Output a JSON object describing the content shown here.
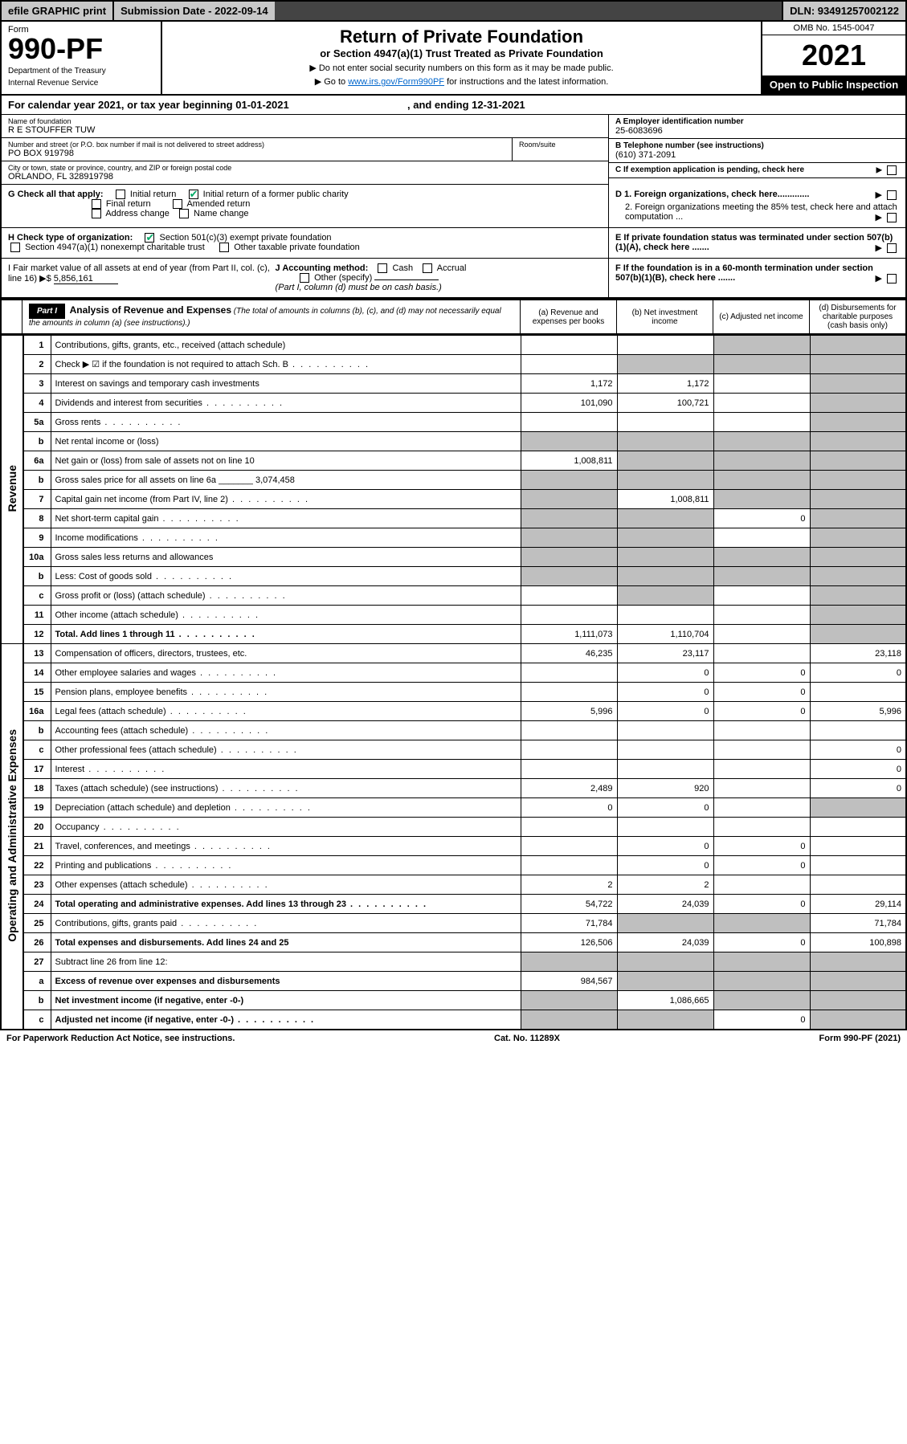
{
  "topbar": {
    "efile": "efile GRAPHIC print",
    "submission_label": "Submission Date - 2022-09-14",
    "dln": "DLN: 93491257002122"
  },
  "header": {
    "form_label": "Form",
    "form_number": "990-PF",
    "dept1": "Department of the Treasury",
    "dept2": "Internal Revenue Service",
    "title": "Return of Private Foundation",
    "subtitle": "or Section 4947(a)(1) Trust Treated as Private Foundation",
    "instr1": "▶ Do not enter social security numbers on this form as it may be made public.",
    "instr2_pre": "▶ Go to ",
    "instr2_link": "www.irs.gov/Form990PF",
    "instr2_post": " for instructions and the latest information.",
    "omb": "OMB No. 1545-0047",
    "year": "2021",
    "open": "Open to Public Inspection"
  },
  "cal": {
    "text_pre": "For calendar year 2021, or tax year beginning ",
    "begin": "01-01-2021",
    "text_mid": " , and ending ",
    "end": "12-31-2021"
  },
  "info": {
    "name_label": "Name of foundation",
    "name": "R E STOUFFER TUW",
    "addr_label": "Number and street (or P.O. box number if mail is not delivered to street address)",
    "addr": "PO BOX 919798",
    "room_label": "Room/suite",
    "city_label": "City or town, state or province, country, and ZIP or foreign postal code",
    "city": "ORLANDO, FL 328919798",
    "a_label": "A Employer identification number",
    "a_val": "25-6083696",
    "b_label": "B Telephone number (see instructions)",
    "b_val": "(610) 371-2091",
    "c_label": "C If exemption application is pending, check here",
    "d1_label": "D 1. Foreign organizations, check here.............",
    "d2_label": "2. Foreign organizations meeting the 85% test, check here and attach computation ...",
    "e_label": "E If private foundation status was terminated under section 507(b)(1)(A), check here .......",
    "f_label": "F If the foundation is in a 60-month termination under section 507(b)(1)(B), check here .......",
    "g_label": "G Check all that apply:",
    "g_opts": [
      "Initial return",
      "Initial return of a former public charity",
      "Final return",
      "Amended return",
      "Address change",
      "Name change"
    ],
    "h_label": "H Check type of organization:",
    "h_opt1": "Section 501(c)(3) exempt private foundation",
    "h_opt2": "Section 4947(a)(1) nonexempt charitable trust",
    "h_opt3": "Other taxable private foundation",
    "i_label": "I Fair market value of all assets at end of year (from Part II, col. (c), line 16) ▶$",
    "i_val": "5,856,161",
    "j_label": "J Accounting method:",
    "j_opts": [
      "Cash",
      "Accrual"
    ],
    "j_other": "Other (specify)",
    "j_note": "(Part I, column (d) must be on cash basis.)"
  },
  "part1": {
    "label": "Part I",
    "title": "Analysis of Revenue and Expenses",
    "title_note": "(The total of amounts in columns (b), (c), and (d) may not necessarily equal the amounts in column (a) (see instructions).)",
    "col_a": "(a) Revenue and expenses per books",
    "col_b": "(b) Net investment income",
    "col_c": "(c) Adjusted net income",
    "col_d": "(d) Disbursements for charitable purposes (cash basis only)"
  },
  "sections": {
    "revenue": "Revenue",
    "expenses": "Operating and Administrative Expenses"
  },
  "rows": [
    {
      "n": "1",
      "d": "s",
      "a": "",
      "b": "",
      "c": "s"
    },
    {
      "n": "2",
      "d": "s",
      "a": "",
      "b": "s",
      "c": "s",
      "dots": true
    },
    {
      "n": "3",
      "d": "s",
      "a": "1,172",
      "b": "1,172",
      "c": ""
    },
    {
      "n": "4",
      "d": "s",
      "a": "101,090",
      "b": "100,721",
      "c": "",
      "dots": true
    },
    {
      "n": "5a",
      "d": "s",
      "a": "",
      "b": "",
      "c": "",
      "dots": true
    },
    {
      "n": "b",
      "d": "s",
      "a": "s",
      "b": "s",
      "c": "s"
    },
    {
      "n": "6a",
      "d": "s",
      "a": "1,008,811",
      "b": "s",
      "c": "s"
    },
    {
      "n": "b",
      "d": "s",
      "a": "s",
      "b": "s",
      "c": "s"
    },
    {
      "n": "7",
      "d": "s",
      "a": "s",
      "b": "1,008,811",
      "c": "s",
      "dots": true
    },
    {
      "n": "8",
      "d": "s",
      "a": "s",
      "b": "s",
      "c": "0",
      "dots": true
    },
    {
      "n": "9",
      "d": "s",
      "a": "s",
      "b": "s",
      "c": "",
      "dots": true
    },
    {
      "n": "10a",
      "d": "s",
      "a": "s",
      "b": "s",
      "c": "s"
    },
    {
      "n": "b",
      "d": "s",
      "a": "s",
      "b": "s",
      "c": "s",
      "dots": true
    },
    {
      "n": "c",
      "d": "s",
      "a": "",
      "b": "s",
      "c": "",
      "dots": true
    },
    {
      "n": "11",
      "d": "s",
      "a": "",
      "b": "",
      "c": "",
      "dots": true
    },
    {
      "n": "12",
      "d": "s",
      "a": "1,111,073",
      "b": "1,110,704",
      "c": "",
      "bold": true,
      "dots": true
    }
  ],
  "exp_rows": [
    {
      "n": "13",
      "d": "23,118",
      "a": "46,235",
      "b": "23,117",
      "c": ""
    },
    {
      "n": "14",
      "d": "0",
      "a": "",
      "b": "0",
      "c": "0",
      "dots": true
    },
    {
      "n": "15",
      "d": "",
      "a": "",
      "b": "0",
      "c": "0",
      "dots": true
    },
    {
      "n": "16a",
      "d": "5,996",
      "a": "5,996",
      "b": "0",
      "c": "0",
      "dots": true
    },
    {
      "n": "b",
      "d": "",
      "a": "",
      "b": "",
      "c": "",
      "dots": true
    },
    {
      "n": "c",
      "d": "0",
      "a": "",
      "b": "",
      "c": "",
      "dots": true
    },
    {
      "n": "17",
      "d": "0",
      "a": "",
      "b": "",
      "c": "",
      "dots": true
    },
    {
      "n": "18",
      "d": "0",
      "a": "2,489",
      "b": "920",
      "c": "",
      "dots": true
    },
    {
      "n": "19",
      "d": "s",
      "a": "0",
      "b": "0",
      "c": "",
      "dots": true
    },
    {
      "n": "20",
      "d": "",
      "a": "",
      "b": "",
      "c": "",
      "dots": true
    },
    {
      "n": "21",
      "d": "",
      "a": "",
      "b": "0",
      "c": "0",
      "dots": true
    },
    {
      "n": "22",
      "d": "",
      "a": "",
      "b": "0",
      "c": "0",
      "dots": true
    },
    {
      "n": "23",
      "d": "",
      "a": "2",
      "b": "2",
      "c": "",
      "dots": true
    },
    {
      "n": "24",
      "d": "29,114",
      "a": "54,722",
      "b": "24,039",
      "c": "0",
      "bold": true,
      "dots": true
    },
    {
      "n": "25",
      "d": "71,784",
      "a": "71,784",
      "b": "s",
      "c": "s",
      "dots": true
    },
    {
      "n": "26",
      "d": "100,898",
      "a": "126,506",
      "b": "24,039",
      "c": "0",
      "bold": true
    },
    {
      "n": "27",
      "d": "s",
      "a": "s",
      "b": "s",
      "c": "s"
    },
    {
      "n": "a",
      "d": "s",
      "a": "984,567",
      "b": "s",
      "c": "s",
      "bold": true
    },
    {
      "n": "b",
      "d": "s",
      "a": "s",
      "b": "1,086,665",
      "c": "s",
      "bold": true
    },
    {
      "n": "c",
      "d": "s",
      "a": "s",
      "b": "s",
      "c": "0",
      "bold": true,
      "dots": true
    }
  ],
  "footer": {
    "left": "For Paperwork Reduction Act Notice, see instructions.",
    "mid": "Cat. No. 11289X",
    "right": "Form 990-PF (2021)"
  },
  "colors": {
    "shade": "#bfbfbf",
    "topbar_grey": "#c8c8c8",
    "link": "#0066cc"
  }
}
